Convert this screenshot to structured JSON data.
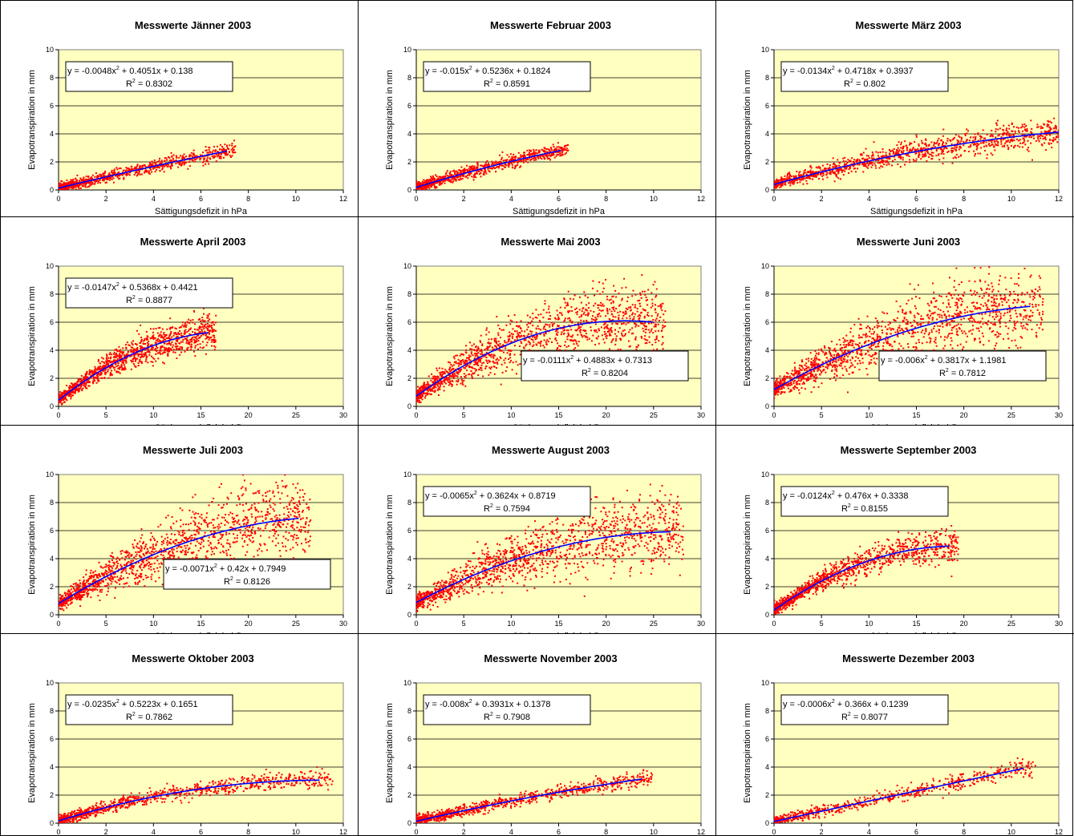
{
  "colors": {
    "plot_bg": "#FFFFC0",
    "points": "#FF0000",
    "trend": "#0000FF",
    "grid": "#000000",
    "border": "#000000"
  },
  "common": {
    "xlabel": "Sättigungsdefizit in hPa",
    "ylabel": "Evapotranspiration in mm",
    "r2_prefix": "R",
    "r2_suffix": " = "
  },
  "chart_data": [
    {
      "type": "scatter",
      "title": "Messwerte Jänner 2003",
      "xlim": [
        0,
        12
      ],
      "xticks": [
        0,
        2,
        4,
        6,
        8,
        10,
        12
      ],
      "ylim": [
        0,
        10
      ],
      "yticks": [
        0,
        2,
        4,
        6,
        8,
        10
      ],
      "grid": "horizontal",
      "trend": {
        "a": -0.0048,
        "b": 0.4051,
        "c": 0.138,
        "xmax": 7.1
      },
      "eq_a": "y = -0.0048x",
      "eq_b": " + 0.4051x + 0.138",
      "r2": "0.8302",
      "eq_box_position": "top-left",
      "point_count": 900,
      "spread": 0.22,
      "density": "high-near-origin"
    },
    {
      "type": "scatter",
      "title": "Messwerte Februar 2003",
      "xlim": [
        0,
        12
      ],
      "xticks": [
        0,
        2,
        4,
        6,
        8,
        10,
        12
      ],
      "ylim": [
        0,
        10
      ],
      "yticks": [
        0,
        2,
        4,
        6,
        8,
        10
      ],
      "grid": "horizontal",
      "trend": {
        "a": -0.015,
        "b": 0.5236,
        "c": 0.1824,
        "xmax": 6.1
      },
      "eq_a": "y = -0.015x",
      "eq_b": " + 0.5236x + 0.1824",
      "r2": "0.8591",
      "eq_box_position": "top-left",
      "point_count": 900,
      "spread": 0.2,
      "density": "high-near-origin"
    },
    {
      "type": "scatter",
      "title": "Messwerte März 2003",
      "xlim": [
        0,
        12
      ],
      "xticks": [
        0,
        2,
        4,
        6,
        8,
        10,
        12
      ],
      "ylim": [
        0,
        10
      ],
      "yticks": [
        0,
        2,
        4,
        6,
        8,
        10
      ],
      "grid": "horizontal",
      "trend": {
        "a": -0.0134,
        "b": 0.4718,
        "c": 0.3937,
        "xmax": 12
      },
      "eq_a": "y = -0.0134x",
      "eq_b": " + 0.4718x + 0.3937",
      "r2": "0.802",
      "eq_box_position": "top-left",
      "point_count": 1200,
      "spread": 0.35,
      "density": "spread"
    },
    {
      "type": "scatter",
      "title": "Messwerte April 2003",
      "xlim": [
        0,
        30
      ],
      "xticks": [
        0,
        5,
        10,
        15,
        20,
        25,
        30
      ],
      "ylim": [
        0,
        10
      ],
      "yticks": [
        0,
        2,
        4,
        6,
        8,
        10
      ],
      "grid": "horizontal",
      "trend": {
        "a": -0.0147,
        "b": 0.5368,
        "c": 0.4421,
        "xmax": 15.8
      },
      "eq_a": "y = -0.0147x",
      "eq_b": " + 0.5368x + 0.4421",
      "r2": "0.8877",
      "eq_box_position": "top-left",
      "point_count": 1200,
      "spread": 0.35,
      "density": "spread"
    },
    {
      "type": "scatter",
      "title": "Messwerte Mai 2003",
      "xlim": [
        0,
        30
      ],
      "xticks": [
        0,
        5,
        10,
        15,
        20,
        25,
        30
      ],
      "ylim": [
        0,
        10
      ],
      "yticks": [
        0,
        2,
        4,
        6,
        8,
        10
      ],
      "grid": "horizontal",
      "trend": {
        "a": -0.0111,
        "b": 0.4883,
        "c": 0.7313,
        "xmax": 25
      },
      "eq_a": "y = -0.0111x",
      "eq_b": " + 0.4883x + 0.7313",
      "r2": "0.8204",
      "eq_box_position": "bottom-right",
      "point_count": 1400,
      "spread": 0.55,
      "density": "spread"
    },
    {
      "type": "scatter",
      "title": "Messwerte Juni 2003",
      "xlim": [
        0,
        30
      ],
      "xticks": [
        0,
        5,
        10,
        15,
        20,
        25,
        30
      ],
      "ylim": [
        0,
        10
      ],
      "yticks": [
        0,
        2,
        4,
        6,
        8,
        10
      ],
      "grid": "horizontal",
      "trend": {
        "a": -0.006,
        "b": 0.3817,
        "c": 1.1981,
        "xmax": 27
      },
      "eq_a": "y = -0.006x",
      "eq_b": " + 0.3817x + 1.1981",
      "r2": "0.7812",
      "eq_box_position": "bottom-right",
      "point_count": 1400,
      "spread": 0.55,
      "density": "spread"
    },
    {
      "type": "scatter",
      "title": "Messwerte Juli 2003",
      "xlim": [
        0,
        30
      ],
      "xticks": [
        0,
        5,
        10,
        15,
        20,
        25,
        30
      ],
      "ylim": [
        0,
        10
      ],
      "yticks": [
        0,
        2,
        4,
        6,
        8,
        10
      ],
      "grid": "horizontal",
      "trend": {
        "a": -0.0071,
        "b": 0.42,
        "c": 0.7949,
        "xmax": 25.3
      },
      "eq_a": "y = -0.0071x",
      "eq_b": " + 0.42x + 0.7949",
      "r2": "0.8126",
      "eq_box_position": "bottom-right",
      "point_count": 1400,
      "spread": 0.6,
      "density": "spread"
    },
    {
      "type": "scatter",
      "title": "Messwerte August 2003",
      "xlim": [
        0,
        30
      ],
      "xticks": [
        0,
        5,
        10,
        15,
        20,
        25,
        30
      ],
      "ylim": [
        0,
        10
      ],
      "yticks": [
        0,
        2,
        4,
        6,
        8,
        10
      ],
      "grid": "horizontal",
      "trend": {
        "a": -0.0065,
        "b": 0.3624,
        "c": 0.8719,
        "xmax": 26.8
      },
      "eq_a": "y = -0.0065x",
      "eq_b": " + 0.3624x + 0.8719",
      "r2": "0.7594",
      "eq_box_position": "top-left",
      "point_count": 1400,
      "spread": 0.6,
      "density": "spread"
    },
    {
      "type": "scatter",
      "title": "Messwerte September 2003",
      "xlim": [
        0,
        30
      ],
      "xticks": [
        0,
        5,
        10,
        15,
        20,
        25,
        30
      ],
      "ylim": [
        0,
        10
      ],
      "yticks": [
        0,
        2,
        4,
        6,
        8,
        10
      ],
      "grid": "horizontal",
      "trend": {
        "a": -0.0124,
        "b": 0.476,
        "c": 0.3338,
        "xmax": 18.5
      },
      "eq_a": "y = -0.0124x",
      "eq_b": " + 0.476x + 0.3338",
      "r2": "0.8155",
      "eq_box_position": "top-left",
      "point_count": 1200,
      "spread": 0.35,
      "density": "high-near-origin"
    },
    {
      "type": "scatter",
      "title": "Messwerte Oktober 2003",
      "xlim": [
        0,
        12
      ],
      "xticks": [
        0,
        2,
        4,
        6,
        8,
        10,
        12
      ],
      "ylim": [
        0,
        10
      ],
      "yticks": [
        0,
        2,
        4,
        6,
        8,
        10
      ],
      "grid": "horizontal",
      "trend": {
        "a": -0.0235,
        "b": 0.5223,
        "c": 0.1651,
        "xmax": 11
      },
      "eq_a": "y = -0.0235x",
      "eq_b": " + 0.5223x + 0.1651",
      "r2": "0.7862",
      "eq_box_position": "top-left",
      "point_count": 1000,
      "spread": 0.25,
      "density": "high-near-origin"
    },
    {
      "type": "scatter",
      "title": "Messwerte November 2003",
      "xlim": [
        0,
        12
      ],
      "xticks": [
        0,
        2,
        4,
        6,
        8,
        10,
        12
      ],
      "ylim": [
        0,
        10
      ],
      "yticks": [
        0,
        2,
        4,
        6,
        8,
        10
      ],
      "grid": "horizontal",
      "trend": {
        "a": -0.008,
        "b": 0.3931,
        "c": 0.1378,
        "xmax": 9.5
      },
      "eq_a": "y = -0.008x",
      "eq_b": " + 0.3931x + 0.1378",
      "r2": "0.7908",
      "eq_box_position": "top-left",
      "point_count": 900,
      "spread": 0.2,
      "density": "high-near-origin"
    },
    {
      "type": "scatter",
      "title": "Messwerte Dezember 2003",
      "xlim": [
        0,
        12
      ],
      "xticks": [
        0,
        2,
        4,
        6,
        8,
        10,
        12
      ],
      "ylim": [
        0,
        10
      ],
      "yticks": [
        0,
        2,
        4,
        6,
        8,
        10
      ],
      "grid": "horizontal",
      "trend": {
        "a": -0.0006,
        "b": 0.366,
        "c": 0.1239,
        "xmax": 10.5
      },
      "eq_a": "y = -0.0006x",
      "eq_b": " + 0.366x + 0.1239",
      "r2": "0.8077",
      "eq_box_position": "top-left",
      "point_count": 700,
      "spread": 0.22,
      "density": "high-near-origin"
    }
  ]
}
